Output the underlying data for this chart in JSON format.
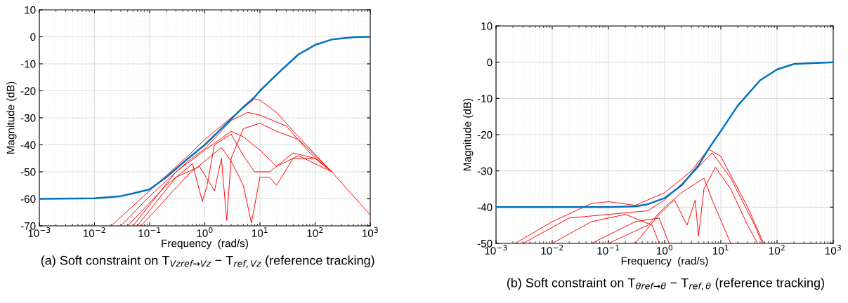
{
  "chart_data": [
    {
      "type": "line",
      "xlabel": "Frequency  (rad/s)",
      "ylabel": "Magnitude (dB)",
      "log": "x",
      "grid": true,
      "legend": false,
      "marker": "none",
      "line_style": "solid",
      "xlim": [
        0.001,
        1000
      ],
      "xticks": [
        {
          "value": 0.001,
          "label": "10$^{−3}$"
        },
        {
          "value": 0.01,
          "label": "10$^{−2}$"
        },
        {
          "value": 0.1,
          "label": "10$^{−1}$"
        },
        {
          "value": 1,
          "label": "10$^{0}$"
        },
        {
          "value": 10,
          "label": "10$^{1}$"
        },
        {
          "value": 100,
          "label": "10$^{2}$"
        },
        {
          "value": 1000,
          "label": "10$^{3}$"
        }
      ],
      "ylim": [
        -70,
        10
      ],
      "yticks": [
        -70,
        -60,
        -50,
        -40,
        -30,
        -20,
        -10,
        0,
        10
      ],
      "annotations": [
        "(a) Soft constraint on T$_{Vzref→Vz}$ − T$_{ref,Vz}$ (reference tracking)"
      ],
      "series": [
        {
          "color": "#ff0000",
          "x": [
            0.02,
            0.1,
            0.5,
            1,
            3,
            8,
            10,
            20,
            50,
            200,
            1000
          ],
          "values": [
            -70,
            -57,
            -44,
            -38,
            -30,
            -23,
            -23.5,
            -28,
            -37,
            -50,
            -66
          ]
        },
        {
          "color": "#ff0000",
          "x": [
            0.03,
            0.1,
            0.5,
            1,
            3,
            6,
            10,
            30,
            80,
            200
          ],
          "values": [
            -70,
            -59,
            -46,
            -41.5,
            -31,
            -28,
            -29,
            -33,
            -43,
            -50
          ]
        },
        {
          "color": "#ff0000",
          "x": [
            0.04,
            0.2,
            0.6,
            0.9,
            1.1,
            1.5,
            3,
            5,
            8,
            15,
            40,
            100,
            200
          ],
          "values": [
            -70,
            -55,
            -47,
            -61,
            -55,
            -40,
            -36,
            -44,
            -50,
            -50,
            -43,
            -45,
            -50
          ]
        },
        {
          "color": "#ff0000",
          "x": [
            0.06,
            0.3,
            0.8,
            1.5,
            2,
            2.5,
            3,
            5,
            10,
            20,
            50,
            200
          ],
          "values": [
            -70,
            -52,
            -48,
            -57,
            -45,
            -68,
            -45,
            -34,
            -32,
            -35,
            -38,
            -50
          ]
        },
        {
          "color": "#ff0000",
          "x": [
            0.07,
            0.5,
            1,
            2,
            3,
            5,
            7,
            10,
            15,
            20,
            40,
            100,
            200
          ],
          "values": [
            -70,
            -51,
            -46,
            -41,
            -46,
            -55,
            -69,
            -52,
            -52,
            -55,
            -45,
            -45,
            -50
          ]
        },
        {
          "color": "#ff0000",
          "x": [
            0.05,
            0.3,
            1,
            3,
            5,
            10,
            20,
            50,
            200
          ],
          "values": [
            -70,
            -50,
            -42,
            -35,
            -37,
            -42,
            -48,
            -44,
            -50
          ]
        },
        {
          "color": "#0072bd",
          "x": [
            0.001,
            0.01,
            0.03,
            0.05,
            0.1,
            0.2,
            0.5,
            1,
            2,
            5,
            8,
            10,
            20,
            50,
            100,
            200,
            500,
            1000
          ],
          "values": [
            -60,
            -59.8,
            -59,
            -58,
            -56.5,
            -52,
            -45,
            -40,
            -34,
            -26,
            -22.3,
            -20,
            -14,
            -6.5,
            -3,
            -1,
            -0.1,
            0
          ]
        }
      ]
    },
    {
      "type": "line",
      "xlabel": "Frequency  (rad/s)",
      "ylabel": "Magnitude (dB)",
      "log": "x",
      "grid": true,
      "legend": false,
      "marker": "none",
      "line_style": "solid",
      "xlim": [
        0.001,
        1000
      ],
      "xticks": [
        {
          "value": 0.001,
          "label": "10$^{−3}$"
        },
        {
          "value": 0.01,
          "label": "10$^{−2}$"
        },
        {
          "value": 0.1,
          "label": "10$^{−1}$"
        },
        {
          "value": 1,
          "label": "10$^{0}$"
        },
        {
          "value": 10,
          "label": "10$^{1}$"
        },
        {
          "value": 100,
          "label": "10$^{2}$"
        },
        {
          "value": 1000,
          "label": "10$^{3}$"
        }
      ],
      "ylim": [
        -50,
        10
      ],
      "yticks": [
        -50,
        -40,
        -30,
        -20,
        -10,
        0,
        10
      ],
      "annotations": [
        "(b) Soft constraint on T$_{θref→θ}$ − T$_{ref,θ}$ (reference tracking)"
      ],
      "series": [
        {
          "color": "#ff0000",
          "x": [
            0.0022,
            0.01,
            0.05,
            0.1,
            0.3,
            1,
            3,
            6,
            10,
            30,
            58
          ],
          "values": [
            -50,
            -44,
            -39,
            -38.5,
            -39.5,
            -36,
            -30,
            -24,
            -26,
            -40,
            -50
          ]
        },
        {
          "color": "#ff0000",
          "x": [
            0.003,
            0.02,
            0.1,
            0.5,
            1,
            3,
            7,
            15,
            40,
            55
          ],
          "values": [
            -50,
            -43,
            -42,
            -41,
            -38,
            -31,
            -25,
            -32,
            -45,
            -50
          ]
        },
        {
          "color": "#ff0000",
          "x": [
            0.01,
            0.05,
            0.2,
            0.6,
            0.8
          ],
          "values": [
            -50,
            -44,
            -42,
            -45,
            -50
          ]
        },
        {
          "color": "#ff0000",
          "x": [
            0.05,
            0.3,
            0.8,
            1.2
          ],
          "values": [
            -50,
            -44,
            -43,
            -50
          ]
        },
        {
          "color": "#ff0000",
          "x": [
            0.3,
            0.8,
            1.5,
            2.5,
            3.5,
            4,
            5,
            8,
            15,
            30,
            45
          ],
          "values": [
            -50,
            -42,
            -38,
            -45,
            -38,
            -48,
            -35,
            -29,
            -35,
            -45,
            -50
          ]
        },
        {
          "color": "#ff0000",
          "x": [
            0.1,
            0.5,
            1,
            2,
            5,
            7,
            15
          ],
          "values": [
            -50,
            -45,
            -40,
            -36,
            -32,
            -38,
            -50
          ]
        },
        {
          "color": "#0072bd",
          "x": [
            0.001,
            0.1,
            0.3,
            0.5,
            1,
            2,
            4,
            6,
            10,
            20,
            50,
            100,
            200,
            1000
          ],
          "values": [
            -40,
            -40,
            -39.8,
            -39.2,
            -37.5,
            -34,
            -28.5,
            -24,
            -19,
            -12,
            -5,
            -2,
            -0.5,
            0
          ]
        }
      ]
    }
  ]
}
